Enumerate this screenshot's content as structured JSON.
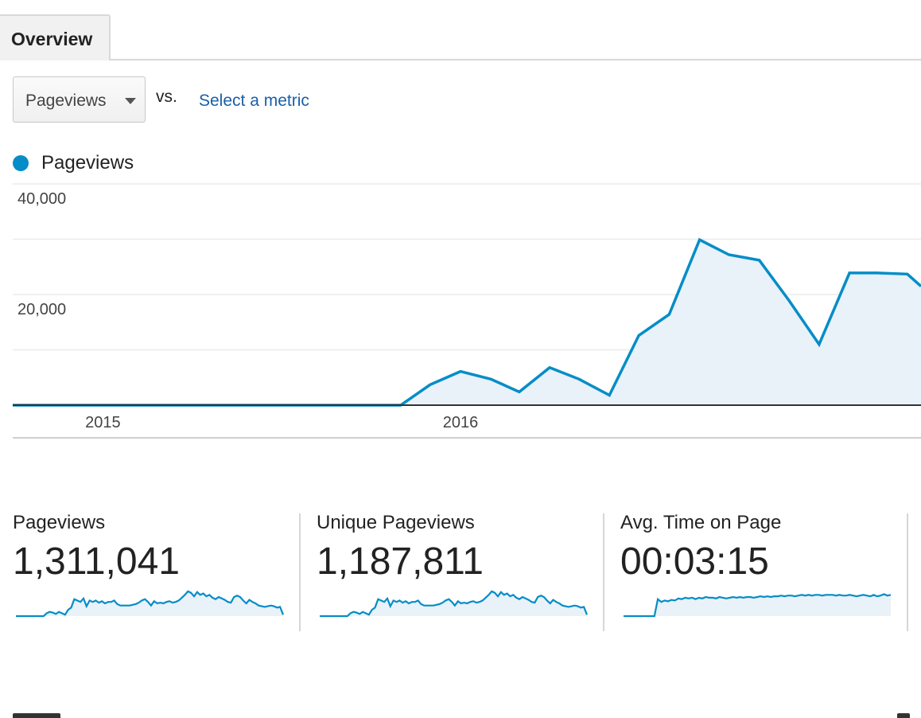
{
  "tabs": [
    {
      "label": "Overview",
      "active": true
    }
  ],
  "metric_selector": {
    "selected": "Pageviews",
    "vs_label": "vs.",
    "compare_link": "Select a metric"
  },
  "legend": {
    "label": "Pageviews",
    "color": "#058dc7"
  },
  "chart_data": {
    "type": "area",
    "series": [
      {
        "name": "Pageviews",
        "color": "#058dc7",
        "points": [
          {
            "x": "2014-10-01",
            "y": 0
          },
          {
            "x": "2015-11-01",
            "y": 0
          },
          {
            "x": "2015-12-01",
            "y": 3700
          },
          {
            "x": "2016-01-01",
            "y": 6100
          },
          {
            "x": "2016-02-01",
            "y": 4700
          },
          {
            "x": "2016-03-01",
            "y": 2400
          },
          {
            "x": "2016-04-01",
            "y": 6800
          },
          {
            "x": "2016-05-01",
            "y": 4700
          },
          {
            "x": "2016-06-01",
            "y": 1800
          },
          {
            "x": "2016-07-01",
            "y": 12600
          },
          {
            "x": "2016-08-01",
            "y": 16400
          },
          {
            "x": "2016-09-01",
            "y": 29900
          },
          {
            "x": "2016-10-01",
            "y": 27200
          },
          {
            "x": "2016-11-01",
            "y": 26200
          },
          {
            "x": "2016-12-01",
            "y": 19000
          },
          {
            "x": "2017-01-01",
            "y": 11000
          },
          {
            "x": "2017-02-01",
            "y": 23900
          },
          {
            "x": "2017-03-01",
            "y": 23900
          },
          {
            "x": "2017-04-01",
            "y": 23700
          },
          {
            "x": "2017-04-15",
            "y": 21500
          }
        ]
      }
    ],
    "y_ticks": [
      "40,000",
      "20,000"
    ],
    "x_ticks": [
      {
        "label": "2015",
        "x": "2015-01-01"
      },
      {
        "label": "2016",
        "x": "2016-01-01"
      }
    ],
    "ylim": [
      0,
      40000
    ],
    "grid": true
  },
  "stats": [
    {
      "label": "Pageviews",
      "value": "1,311,041"
    },
    {
      "label": "Unique Pageviews",
      "value": "1,187,811"
    },
    {
      "label": "Avg. Time on Page",
      "value": "00:03:15"
    }
  ],
  "sparklines": [
    [
      0,
      0,
      0,
      0,
      0,
      0,
      0,
      0,
      0,
      0,
      4,
      6,
      5,
      3,
      6,
      4,
      2,
      9,
      12,
      24,
      22,
      20,
      25,
      14,
      22,
      20,
      22,
      19,
      21,
      18,
      20,
      20,
      22,
      17,
      15,
      15,
      15,
      15,
      16,
      17,
      19,
      22,
      24,
      20,
      15,
      21,
      18,
      19,
      18,
      20,
      21,
      19,
      20,
      22,
      26,
      30,
      35,
      33,
      28,
      34,
      30,
      32,
      28,
      30,
      26,
      24,
      27,
      25,
      23,
      20,
      19,
      27,
      29,
      27,
      22,
      18,
      23,
      20,
      18,
      15,
      14,
      13,
      14,
      15,
      14,
      12,
      13,
      2
    ],
    [
      0,
      0,
      0,
      0,
      0,
      0,
      0,
      0,
      0,
      0,
      4,
      6,
      5,
      3,
      6,
      4,
      2,
      9,
      12,
      24,
      22,
      20,
      25,
      14,
      22,
      20,
      22,
      19,
      21,
      18,
      20,
      20,
      22,
      17,
      15,
      15,
      15,
      15,
      16,
      17,
      19,
      22,
      24,
      20,
      15,
      21,
      18,
      19,
      18,
      20,
      21,
      19,
      20,
      22,
      26,
      30,
      35,
      33,
      28,
      34,
      30,
      32,
      28,
      30,
      26,
      24,
      27,
      25,
      23,
      20,
      19,
      27,
      29,
      27,
      22,
      18,
      23,
      20,
      18,
      15,
      14,
      13,
      14,
      15,
      14,
      12,
      13,
      2
    ],
    [
      0,
      0,
      0,
      0,
      0,
      0,
      0,
      0,
      0,
      0,
      24,
      20,
      22,
      21,
      23,
      22,
      25,
      24,
      26,
      25,
      26,
      24,
      26,
      25,
      27,
      26,
      26,
      25,
      27,
      26,
      25,
      26,
      27,
      26,
      27,
      26,
      27,
      27,
      26,
      27,
      28,
      27,
      28,
      27,
      28,
      28,
      29,
      28,
      29,
      29,
      28,
      29,
      30,
      29,
      30,
      29,
      30,
      30,
      29,
      30,
      30,
      30,
      29,
      30,
      29,
      29,
      30,
      29,
      28,
      29,
      30,
      29,
      28,
      30,
      28,
      29,
      31,
      29,
      30
    ]
  ]
}
